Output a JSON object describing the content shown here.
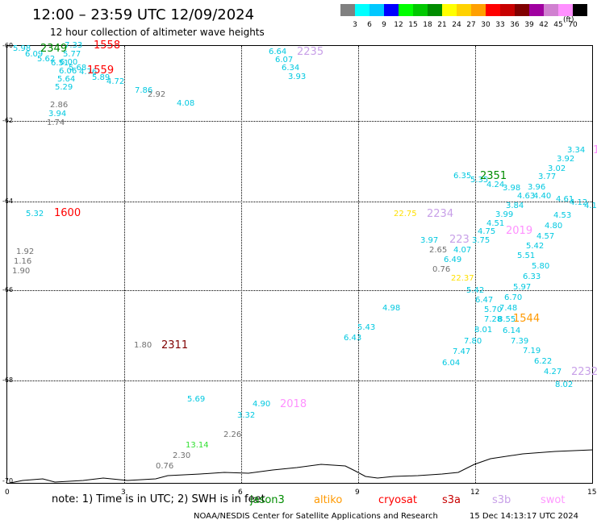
{
  "title": "12:00 – 23:59 UTC 12/09/2024",
  "subtitle": "12 hour collection of altimeter wave heights",
  "colorbar": {
    "colors": [
      "#808080",
      "#00ffff",
      "#00c8ff",
      "#0000ff",
      "#00ff00",
      "#00c800",
      "#008c00",
      "#ffff00",
      "#ffd200",
      "#ffa000",
      "#ff0000",
      "#c80000",
      "#800000",
      "#a000a0",
      "#d080d0",
      "#ff90ff",
      "#000000"
    ],
    "labels": [
      "3",
      "6",
      "9",
      "12",
      "15",
      "18",
      "21",
      "24",
      "27",
      "30",
      "33",
      "36",
      "39",
      "42",
      "45",
      "70"
    ],
    "unit": "(ft)"
  },
  "axes": {
    "y_labels": [
      "-60",
      "-62",
      "-64",
      "-66",
      "-68",
      "-70"
    ],
    "x_labels": [
      "0",
      "3",
      "6",
      "9",
      "12",
      "15"
    ]
  },
  "note": "note:  1) Time is in UTC;  2) SWH is in feet",
  "legend": [
    {
      "name": "jason3",
      "color": "#008c00"
    },
    {
      "name": "altiko",
      "color": "#ff9900"
    },
    {
      "name": "cryosat",
      "color": "#ff0000"
    },
    {
      "name": "s3a",
      "color": "#c80000"
    },
    {
      "name": "s3b",
      "color": "#c8a0e8"
    },
    {
      "name": "swot",
      "color": "#ff99ff"
    }
  ],
  "credit": "NOAA/NESDIS Center for Satellite Applications and Research",
  "timestamp": "15 Dec 14:13:17 UTC 2024",
  "observations": [
    {
      "v": "5.98",
      "c": "#00c8e0"
    },
    {
      "v": "6.09",
      "c": "#00c8e0"
    },
    {
      "v": "5.62",
      "c": "#00c8e0"
    },
    {
      "v": "6.51",
      "c": "#00c8e0"
    },
    {
      "v": "7.33",
      "c": "#00c8e0"
    },
    {
      "v": "5.77",
      "c": "#00c8e0"
    },
    {
      "v": "6.00",
      "c": "#00c8e0"
    },
    {
      "v": "5.68",
      "c": "#00c8e0"
    },
    {
      "v": "6.06",
      "c": "#00c8e0"
    },
    {
      "v": "4.76",
      "c": "#00c8e0"
    },
    {
      "v": "5.64",
      "c": "#00c8e0"
    },
    {
      "v": "5.29",
      "c": "#00c8e0"
    },
    {
      "v": "5.89",
      "c": "#00c8e0"
    },
    {
      "v": "4.72",
      "c": "#00c8e0"
    },
    {
      "v": "7.86",
      "c": "#00c8e0"
    },
    {
      "v": "2.92",
      "c": "#707070"
    },
    {
      "v": "4.08",
      "c": "#00c8e0"
    },
    {
      "v": "2.86",
      "c": "#707070"
    },
    {
      "v": "3.94",
      "c": "#00c8e0"
    },
    {
      "v": "1.74",
      "c": "#707070"
    },
    {
      "v": "6.64",
      "c": "#00c8e0"
    },
    {
      "v": "6.07",
      "c": "#00c8e0"
    },
    {
      "v": "6.34",
      "c": "#00c8e0"
    },
    {
      "v": "3.93",
      "c": "#00c8e0"
    },
    {
      "v": "5.32",
      "c": "#00c8e0"
    },
    {
      "v": "1.92",
      "c": "#707070"
    },
    {
      "v": "1.16",
      "c": "#707070"
    },
    {
      "v": "1.90",
      "c": "#707070"
    },
    {
      "v": "1.80",
      "c": "#707070"
    },
    {
      "v": "5.69",
      "c": "#00c8e0"
    },
    {
      "v": "4.90",
      "c": "#00c8e0"
    },
    {
      "v": "3.32",
      "c": "#00c8e0"
    },
    {
      "v": "2.26",
      "c": "#707070"
    },
    {
      "v": "13.14",
      "c": "#30e030"
    },
    {
      "v": "2.30",
      "c": "#707070"
    },
    {
      "v": "0.76",
      "c": "#707070"
    },
    {
      "v": "3.34",
      "c": "#00c8e0"
    },
    {
      "v": "3.92",
      "c": "#00c8e0"
    },
    {
      "v": "3.02",
      "c": "#00c8e0"
    },
    {
      "v": "3.77",
      "c": "#00c8e0"
    },
    {
      "v": "6.35",
      "c": "#00c8e0"
    },
    {
      "v": "5.35",
      "c": "#00c8e0"
    },
    {
      "v": "4.24",
      "c": "#00c8e0"
    },
    {
      "v": "3.98",
      "c": "#00c8e0"
    },
    {
      "v": "3.96",
      "c": "#00c8e0"
    },
    {
      "v": "4.63",
      "c": "#00c8e0"
    },
    {
      "v": "4.40",
      "c": "#00c8e0"
    },
    {
      "v": "4.61",
      "c": "#00c8e0"
    },
    {
      "v": "4.12",
      "c": "#00c8e0"
    },
    {
      "v": "4.1",
      "c": "#00c8e0"
    },
    {
      "v": "3.84",
      "c": "#00c8e0"
    },
    {
      "v": "3.99",
      "c": "#00c8e0"
    },
    {
      "v": "4.51",
      "c": "#00c8e0"
    },
    {
      "v": "4.75",
      "c": "#00c8e0"
    },
    {
      "v": "4.80",
      "c": "#00c8e0"
    },
    {
      "v": "4.53",
      "c": "#00c8e0"
    },
    {
      "v": "4.57",
      "c": "#00c8e0"
    },
    {
      "v": "5.42",
      "c": "#00c8e0"
    },
    {
      "v": "22.75",
      "c": "#ffe000"
    },
    {
      "v": "3.97",
      "c": "#00c8e0"
    },
    {
      "v": "3.75",
      "c": "#00c8e0"
    },
    {
      "v": "2.65",
      "c": "#707070"
    },
    {
      "v": "4.07",
      "c": "#00c8e0"
    },
    {
      "v": "6.49",
      "c": "#00c8e0"
    },
    {
      "v": "5.51",
      "c": "#00c8e0"
    },
    {
      "v": "5.80",
      "c": "#00c8e0"
    },
    {
      "v": "0.76",
      "c": "#707070"
    },
    {
      "v": "22.37",
      "c": "#ffe000"
    },
    {
      "v": "6.33",
      "c": "#00c8e0"
    },
    {
      "v": "5.97",
      "c": "#00c8e0"
    },
    {
      "v": "5.42",
      "c": "#00c8e0"
    },
    {
      "v": "6.47",
      "c": "#00c8e0"
    },
    {
      "v": "6.70",
      "c": "#00c8e0"
    },
    {
      "v": "5.70",
      "c": "#00c8e0"
    },
    {
      "v": "7.48",
      "c": "#00c8e0"
    },
    {
      "v": "7.28",
      "c": "#00c8e0"
    },
    {
      "v": "8.55",
      "c": "#00c8e0"
    },
    {
      "v": "4.98",
      "c": "#00c8e0"
    },
    {
      "v": "5.43",
      "c": "#00c8e0"
    },
    {
      "v": "8.01",
      "c": "#00c8e0"
    },
    {
      "v": "6.14",
      "c": "#00c8e0"
    },
    {
      "v": "6.43",
      "c": "#00c8e0"
    },
    {
      "v": "7.39",
      "c": "#00c8e0"
    },
    {
      "v": "7.80",
      "c": "#00c8e0"
    },
    {
      "v": "7.19",
      "c": "#00c8e0"
    },
    {
      "v": "7.47",
      "c": "#00c8e0"
    },
    {
      "v": "6.22",
      "c": "#00c8e0"
    },
    {
      "v": "6.04",
      "c": "#00c8e0"
    },
    {
      "v": "4.27",
      "c": "#00c8e0"
    },
    {
      "v": "8.02",
      "c": "#00c8e0"
    }
  ],
  "times": [
    {
      "v": "2349",
      "c": "#008c00"
    },
    {
      "v": "1558",
      "c": "#ff0000"
    },
    {
      "v": "1559",
      "c": "#ff0000"
    },
    {
      "v": "2235",
      "c": "#c8a0e8"
    },
    {
      "v": "1600",
      "c": "#ff0000"
    },
    {
      "v": "2311",
      "c": "#800000"
    },
    {
      "v": "2018",
      "c": "#ff90ff"
    },
    {
      "v": "2351",
      "c": "#008c00"
    },
    {
      "v": "1",
      "c": "#ff90ff"
    },
    {
      "v": "2234",
      "c": "#c8a0e8"
    },
    {
      "v": "223",
      "c": "#c8a0e8"
    },
    {
      "v": "2019",
      "c": "#ff90ff"
    },
    {
      "v": "1544",
      "c": "#ff9900"
    },
    {
      "v": "2232",
      "c": "#c8a0e8"
    }
  ]
}
